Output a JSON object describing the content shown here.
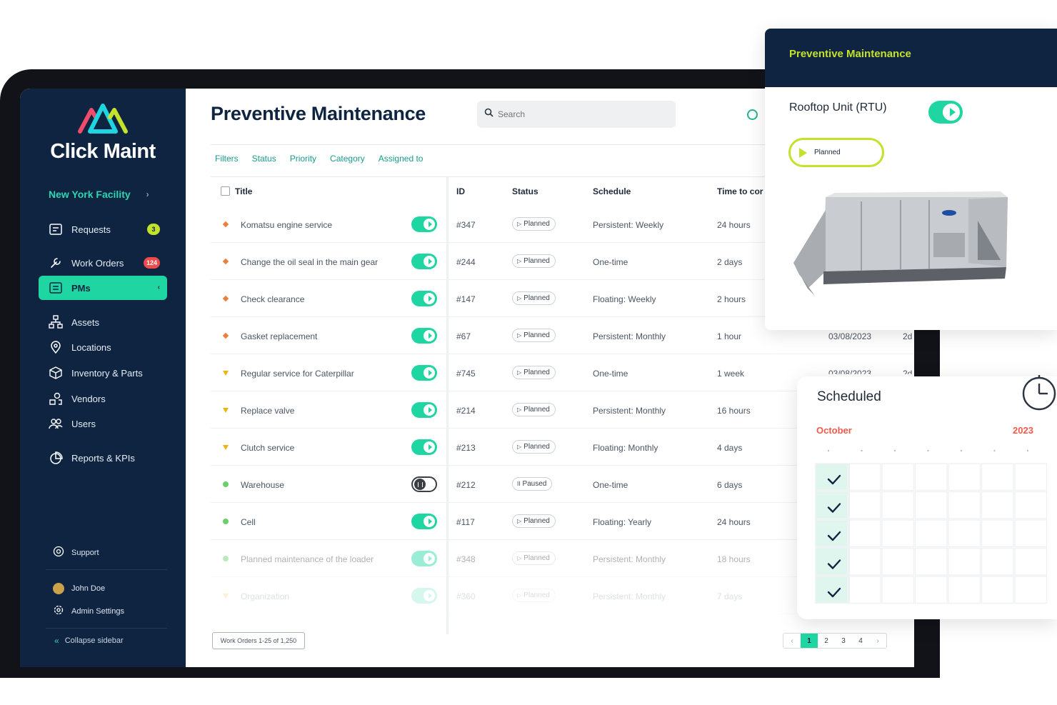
{
  "app": {
    "name": "Click Maint",
    "facility": "New York Facility"
  },
  "sidebar": {
    "items": [
      {
        "label": "Requests",
        "icon": "requests-icon",
        "badge": "3"
      },
      {
        "label": "Work Orders",
        "icon": "wrench-icon",
        "badge": "124"
      },
      {
        "label": "PMs",
        "icon": "calendar-list-icon",
        "active": true
      },
      {
        "label": "Assets",
        "icon": "sitemap-icon"
      },
      {
        "label": "Locations",
        "icon": "location-pin-icon"
      },
      {
        "label": "Inventory & Parts",
        "icon": "box-icon"
      },
      {
        "label": "Vendors",
        "icon": "vendor-icon"
      },
      {
        "label": "Users",
        "icon": "users-icon"
      },
      {
        "label": "Reports & KPIs",
        "icon": "pie-chart-icon"
      }
    ],
    "support": "Support",
    "user": "John Doe",
    "admin": "Admin Settings",
    "collapse": "Collapse sidebar"
  },
  "main": {
    "title": "Preventive Maintenance",
    "search_placeholder": "Search",
    "filters": [
      "Filters",
      "Status",
      "Priority",
      "Category",
      "Assigned to"
    ],
    "columns": {
      "title": "Title",
      "id": "ID",
      "status": "Status",
      "schedule": "Schedule",
      "time": "Time to cor"
    },
    "rows": [
      {
        "priority": "high",
        "title": "Komatsu engine service",
        "on": true,
        "id": "#347",
        "status": "Planned",
        "schedule": "Persistent: Weekly",
        "time": "24 hours"
      },
      {
        "priority": "high",
        "title": "Change the oil seal in the main gear",
        "on": true,
        "id": "#244",
        "status": "Planned",
        "schedule": "One-time",
        "time": "2 days"
      },
      {
        "priority": "high",
        "title": "Check clearance",
        "on": true,
        "id": "#147",
        "status": "Planned",
        "schedule": "Floating: Weekly",
        "time": "2 hours"
      },
      {
        "priority": "high",
        "title": "Gasket replacement",
        "on": true,
        "id": "#67",
        "status": "Planned",
        "schedule": "Persistent: Monthly",
        "time": "1 hour"
      },
      {
        "priority": "medium",
        "title": "Regular service for Caterpillar",
        "on": true,
        "id": "#745",
        "status": "Planned",
        "schedule": "One-time",
        "time": "1 week"
      },
      {
        "priority": "medium",
        "title": "Replace valve",
        "on": true,
        "id": "#214",
        "status": "Planned",
        "schedule": "Persistent: Monthly",
        "time": "16 hours"
      },
      {
        "priority": "medium",
        "title": "Clutch service",
        "on": true,
        "id": "#213",
        "status": "Planned",
        "schedule": "Floating: Monthly",
        "time": "4 days"
      },
      {
        "priority": "low",
        "title": "Warehouse",
        "on": false,
        "id": "#212",
        "status": "Paused",
        "schedule": "One-time",
        "time": "6 days"
      },
      {
        "priority": "low",
        "title": "Cell",
        "on": true,
        "id": "#117",
        "status": "Planned",
        "schedule": "Floating: Yearly",
        "time": "24 hours"
      },
      {
        "priority": "low",
        "title": "Planned maintenance of the loader",
        "on": true,
        "id": "#348",
        "status": "Planned",
        "schedule": "Persistent: Monthly",
        "time": "18 hours"
      },
      {
        "priority": "medium",
        "title": "Organization",
        "on": true,
        "id": "#360",
        "status": "Planned",
        "schedule": "Persistent: Monthly",
        "time": "7 days"
      }
    ],
    "peek_dates": [
      "03/08/2023",
      "03/08/2023"
    ],
    "peek_suffix": [
      "2d",
      "2d"
    ],
    "footer_count": "Work Orders 1-25 of 1,250",
    "pages": [
      "1",
      "2",
      "3",
      "4"
    ]
  },
  "pm_card": {
    "title": "Preventive Maintenance",
    "asset": "Rooftop Unit (RTU)",
    "status": "Planned"
  },
  "schedule_card": {
    "title": "Scheduled",
    "month": "October",
    "year": "2023"
  },
  "colors": {
    "navy": "#0e2441",
    "teal": "#1fd6a3",
    "lime": "#c4e22b",
    "red": "#ef5a4a"
  }
}
